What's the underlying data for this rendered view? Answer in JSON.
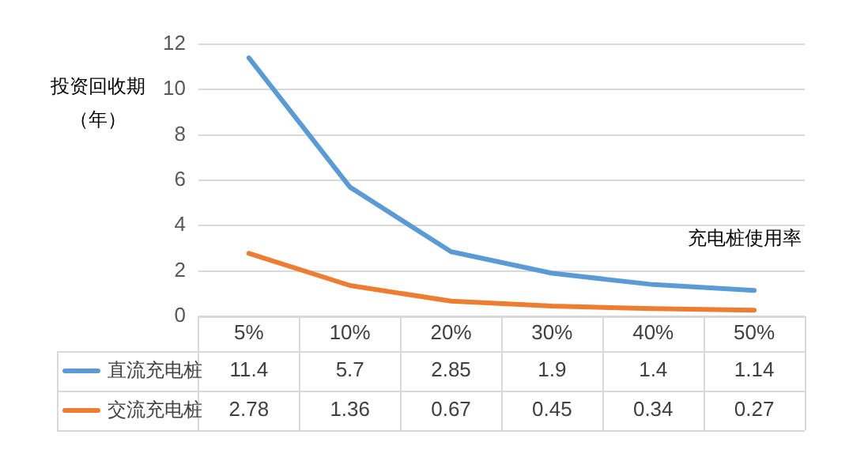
{
  "chart_data": {
    "type": "line",
    "xlabel": "充电桩使用率",
    "ylabel": "投资回收期（年）",
    "categories": [
      "5%",
      "10%",
      "20%",
      "30%",
      "40%",
      "50%"
    ],
    "series": [
      {
        "name": "直流充电桩",
        "color": "#5b9bd5",
        "values": [
          11.4,
          5.7,
          2.85,
          1.9,
          1.4,
          1.14
        ]
      },
      {
        "name": "交流充电桩",
        "color": "#ed7d31",
        "values": [
          2.78,
          1.36,
          0.67,
          0.45,
          0.34,
          0.27
        ]
      }
    ],
    "ylim": [
      0,
      12
    ],
    "yticks": [
      0,
      2,
      4,
      6,
      8,
      10,
      12
    ],
    "grid": "y",
    "legend": "bottom",
    "data_labels": true,
    "marker": "none",
    "line_style": "solid"
  }
}
